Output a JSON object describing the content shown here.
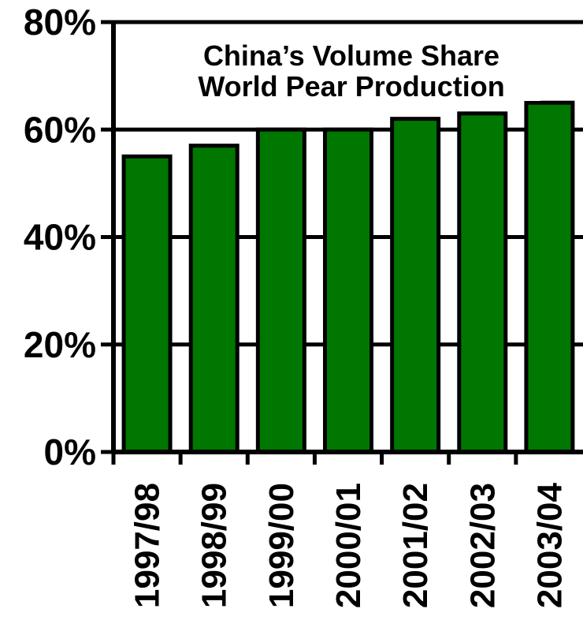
{
  "chart_data": {
    "type": "bar",
    "title_lines": [
      "China’s Volume Share",
      "World Pear Production"
    ],
    "categories": [
      "1997/98",
      "1998/99",
      "1999/00",
      "2000/01",
      "2001/02",
      "2002/03",
      "2003/04"
    ],
    "values": [
      55,
      57,
      60,
      60,
      62,
      63,
      65
    ],
    "y_ticks": [
      "0%",
      "20%",
      "40%",
      "60%",
      "80%"
    ],
    "y_tick_values": [
      0,
      20,
      40,
      60,
      80
    ],
    "ylim": [
      0,
      80
    ],
    "xlabel": "",
    "ylabel": "",
    "grid": true,
    "bar_color": "#007700",
    "bar_edge_color": "#000000"
  }
}
